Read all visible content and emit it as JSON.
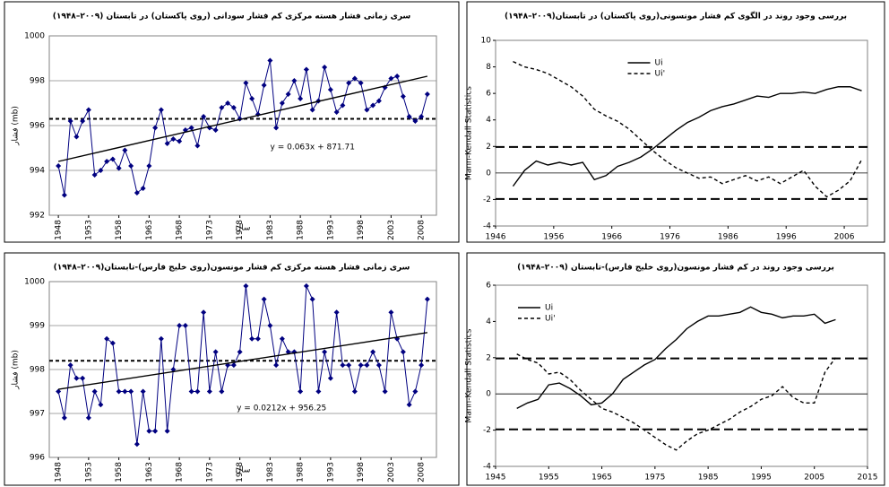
{
  "chart_data": [
    {
      "type": "line",
      "title": "سری زمانی فشار هسته مرکزی کم فشار سودانی (روی پاکستان) در تابستان (۲۰۰۹–۱۹۴۸)",
      "xlabel": "سال",
      "ylabel": "فشار (mb)",
      "annotation": "y = 0.063x + 871.71",
      "x": [
        1948,
        1949,
        1950,
        1951,
        1952,
        1953,
        1954,
        1955,
        1956,
        1957,
        1958,
        1959,
        1960,
        1961,
        1962,
        1963,
        1964,
        1965,
        1966,
        1967,
        1968,
        1969,
        1970,
        1971,
        1972,
        1973,
        1974,
        1975,
        1976,
        1977,
        1978,
        1979,
        1980,
        1981,
        1982,
        1983,
        1984,
        1985,
        1986,
        1987,
        1988,
        1989,
        1990,
        1991,
        1992,
        1993,
        1994,
        1995,
        1996,
        1997,
        1998,
        1999,
        2000,
        2001,
        2002,
        2003,
        2004,
        2005,
        2006,
        2007,
        2008,
        2009
      ],
      "series": [
        {
          "color": "#000080",
          "values": [
            994.2,
            992.9,
            996.2,
            995.5,
            996.2,
            996.7,
            993.8,
            994.0,
            994.4,
            994.5,
            994.1,
            994.9,
            994.2,
            993.0,
            993.2,
            994.2,
            995.9,
            996.7,
            995.2,
            995.4,
            995.3,
            995.8,
            995.9,
            995.1,
            996.4,
            995.9,
            995.8,
            996.8,
            997.0,
            996.8,
            996.3,
            997.9,
            997.2,
            996.5,
            997.8,
            998.9,
            995.9,
            997.0,
            997.4,
            998.0,
            997.2,
            998.5,
            996.7,
            997.1,
            998.6,
            997.6,
            996.6,
            996.9,
            997.9,
            998.1,
            997.9,
            996.7,
            996.9,
            997.1,
            997.7,
            998.1,
            998.2,
            997.3,
            996.4,
            996.2,
            996.4,
            997.4
          ]
        }
      ],
      "markers": true,
      "grid": true,
      "xtick_rotation": -90,
      "trend": {
        "x": [
          1948,
          2009
        ],
        "values": [
          994.4,
          998.2
        ]
      },
      "mean": 996.3,
      "xlim": [
        1946.5,
        2010.5
      ],
      "xticks": [
        1948,
        1953,
        1958,
        1963,
        1968,
        1973,
        1978,
        1983,
        1988,
        1993,
        1998,
        2003,
        2008
      ],
      "ylim": [
        992,
        1000
      ],
      "yticks": [
        992,
        994,
        996,
        998,
        1000
      ]
    },
    {
      "type": "line",
      "title": "بررسی وجود روند در الگوی کم فشار مونسونی(روی پاکستان) در تابستان(۲۰۰۹–۱۹۴۸)",
      "ylabel": "Mann-Kendall Statistics",
      "x": [
        1949,
        1951,
        1953,
        1955,
        1957,
        1959,
        1961,
        1963,
        1965,
        1967,
        1969,
        1971,
        1973,
        1975,
        1977,
        1979,
        1981,
        1983,
        1985,
        1987,
        1989,
        1991,
        1993,
        1995,
        1997,
        1999,
        2001,
        2003,
        2005,
        2007,
        2009
      ],
      "series": [
        {
          "name": "Ui",
          "color": "#000000",
          "dash": false,
          "values": [
            -1.0,
            0.2,
            0.9,
            0.6,
            0.8,
            0.6,
            0.8,
            -0.5,
            -0.2,
            0.5,
            0.8,
            1.2,
            1.8,
            2.5,
            3.2,
            3.8,
            4.2,
            4.7,
            5.0,
            5.2,
            5.5,
            5.8,
            5.7,
            6.0,
            6.0,
            6.1,
            6.0,
            6.3,
            6.5,
            6.5,
            6.2
          ]
        },
        {
          "name": "Ui'",
          "color": "#000000",
          "dash": true,
          "values": [
            8.4,
            8.0,
            7.8,
            7.5,
            7.0,
            6.5,
            5.8,
            4.8,
            4.3,
            3.9,
            3.3,
            2.5,
            1.7,
            1.0,
            0.4,
            0.0,
            -0.4,
            -0.3,
            -0.8,
            -0.5,
            -0.2,
            -0.6,
            -0.3,
            -0.8,
            -0.3,
            0.2,
            -1.0,
            -1.8,
            -1.3,
            -0.6,
            1.0
          ]
        }
      ],
      "markers": false,
      "grid": false,
      "zeroline": true,
      "legend": "upper center",
      "thresholds": [
        1.96,
        -1.96
      ],
      "xlim": [
        1946,
        2010
      ],
      "xticks": [
        1946,
        1956,
        1966,
        1976,
        1986,
        1996,
        2006
      ],
      "ylim": [
        -4,
        10
      ],
      "yticks": [
        -4,
        -2,
        0,
        2,
        4,
        6,
        8,
        10
      ]
    },
    {
      "type": "line",
      "title": "سری زمانی فشار هسته مرکزی کم فشار مونسون(روی خلیج فارس)-تابستان(۲۰۰۹–۱۹۴۸)",
      "xlabel": "سال",
      "ylabel": "فشار (mb)",
      "annotation": "y = 0.0212x + 956.25",
      "x": [
        1948,
        1949,
        1950,
        1951,
        1952,
        1953,
        1954,
        1955,
        1956,
        1957,
        1958,
        1959,
        1960,
        1961,
        1962,
        1963,
        1964,
        1965,
        1966,
        1967,
        1968,
        1969,
        1970,
        1971,
        1972,
        1973,
        1974,
        1975,
        1976,
        1977,
        1978,
        1979,
        1980,
        1981,
        1982,
        1983,
        1984,
        1985,
        1986,
        1987,
        1988,
        1989,
        1990,
        1991,
        1992,
        1993,
        1994,
        1995,
        1996,
        1997,
        1998,
        1999,
        2000,
        2001,
        2002,
        2003,
        2004,
        2005,
        2006,
        2007,
        2008,
        2009
      ],
      "series": [
        {
          "color": "#000080",
          "values": [
            997.5,
            996.9,
            998.1,
            997.8,
            997.8,
            996.9,
            997.5,
            997.2,
            998.7,
            998.6,
            997.5,
            997.5,
            997.5,
            996.3,
            997.5,
            996.6,
            996.6,
            998.7,
            996.6,
            998.0,
            999.0,
            999.0,
            997.5,
            997.5,
            999.3,
            997.5,
            998.4,
            997.5,
            998.1,
            998.1,
            998.4,
            999.9,
            998.7,
            998.7,
            999.6,
            999.0,
            998.1,
            998.7,
            998.4,
            998.4,
            997.5,
            999.9,
            999.6,
            997.5,
            998.4,
            997.8,
            999.3,
            998.1,
            998.1,
            997.5,
            998.1,
            998.1,
            998.4,
            998.1,
            997.5,
            999.3,
            998.7,
            998.4,
            997.2,
            997.5,
            998.1,
            999.6
          ]
        }
      ],
      "markers": true,
      "grid": true,
      "xtick_rotation": -90,
      "trend": {
        "x": [
          1948,
          2009
        ],
        "values": [
          997.55,
          998.84
        ]
      },
      "mean": 998.2,
      "xlim": [
        1946.5,
        2010.5
      ],
      "xticks": [
        1948,
        1953,
        1958,
        1963,
        1968,
        1973,
        1978,
        1983,
        1988,
        1993,
        1998,
        2003,
        2008
      ],
      "ylim": [
        996,
        1000
      ],
      "yticks": [
        996,
        997,
        998,
        999,
        1000
      ]
    },
    {
      "type": "line",
      "title": "بررسی وجود روند  در کم فشار مونسون(روی خلیج فارس)-تابستان (۲۰۰۹–۱۹۴۸)",
      "ylabel": "Mann-Kendall Statistics",
      "x": [
        1949,
        1951,
        1953,
        1955,
        1957,
        1959,
        1961,
        1963,
        1965,
        1967,
        1969,
        1971,
        1973,
        1975,
        1977,
        1979,
        1981,
        1983,
        1985,
        1987,
        1989,
        1991,
        1993,
        1995,
        1997,
        1999,
        2001,
        2003,
        2005,
        2007,
        2009
      ],
      "series": [
        {
          "name": "Ui",
          "color": "#000000",
          "dash": false,
          "values": [
            -0.8,
            -0.5,
            -0.3,
            0.5,
            0.6,
            0.3,
            -0.1,
            -0.6,
            -0.5,
            0.0,
            0.8,
            1.2,
            1.6,
            1.9,
            2.5,
            3.0,
            3.6,
            4.0,
            4.3,
            4.3,
            4.4,
            4.5,
            4.8,
            4.5,
            4.4,
            4.2,
            4.3,
            4.3,
            4.4,
            3.9,
            4.1
          ]
        },
        {
          "name": "Ui'",
          "color": "#000000",
          "dash": true,
          "values": [
            2.2,
            1.9,
            1.7,
            1.1,
            1.2,
            0.8,
            0.2,
            -0.3,
            -0.8,
            -1.0,
            -1.3,
            -1.6,
            -2.0,
            -2.4,
            -2.8,
            -3.1,
            -2.6,
            -2.2,
            -2.0,
            -1.7,
            -1.4,
            -1.0,
            -0.7,
            -0.3,
            -0.1,
            0.4,
            -0.2,
            -0.5,
            -0.5,
            1.2,
            2.0
          ]
        }
      ],
      "markers": false,
      "grid": false,
      "zeroline": true,
      "legend": "upper left",
      "thresholds": [
        1.96,
        -1.96
      ],
      "xlim": [
        1945,
        2015
      ],
      "xticks": [
        1945,
        1955,
        1965,
        1975,
        1985,
        1995,
        2005,
        2015
      ],
      "ylim": [
        -4,
        6
      ],
      "yticks": [
        -4,
        -2,
        0,
        2,
        4,
        6
      ]
    }
  ]
}
